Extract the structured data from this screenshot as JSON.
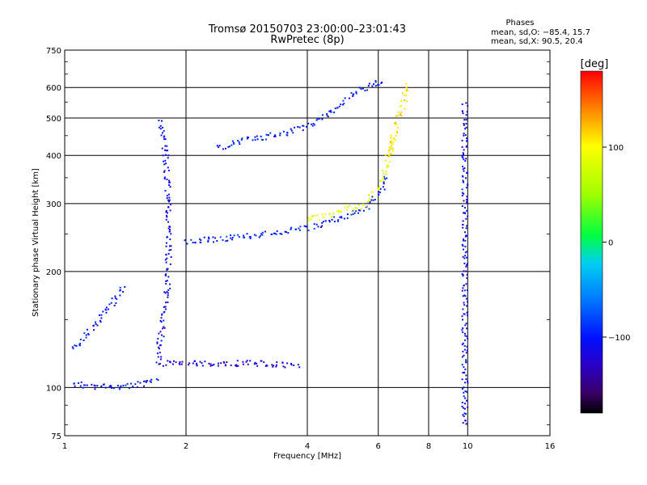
{
  "title_line1": "Tromsø 20150703 23:00:00–23:01:43",
  "title_line2": "RwPretec (8p)",
  "phase_box": {
    "heading": "Phases",
    "line1": "mean, sd,O: −85.4, 15.7",
    "line2": "mean, sd,X:  90.5, 20.4"
  },
  "colorbar": {
    "label": "[deg]",
    "ticks": [
      {
        "value": 100,
        "label": "100"
      },
      {
        "value": 0,
        "label": "0"
      },
      {
        "value": -100,
        "label": "−100"
      }
    ],
    "range": [
      -180,
      180
    ]
  },
  "chart_data": {
    "type": "scatter",
    "title": "Tromsø 20150703 23:00:00–23:01:43",
    "subtitle": "RwPretec (8p)",
    "xlabel": "Frequency [MHz]",
    "ylabel": "Stationary phase Virtual Height [km]",
    "x_scale": "log",
    "y_scale": "log",
    "xlim": [
      1,
      16
    ],
    "ylim": [
      75,
      750
    ],
    "x_ticks": [
      {
        "value": 1,
        "label": "1"
      },
      {
        "value": 2,
        "label": "2"
      },
      {
        "value": 4,
        "label": "4"
      },
      {
        "value": 6,
        "label": "6"
      },
      {
        "value": 8,
        "label": "8"
      },
      {
        "value": 10,
        "label": "10"
      },
      {
        "value": 16,
        "label": "16"
      }
    ],
    "y_ticks": [
      {
        "value": 75,
        "label": "75"
      },
      {
        "value": 100,
        "label": "100"
      },
      {
        "value": 200,
        "label": "200"
      },
      {
        "value": 300,
        "label": "300"
      },
      {
        "value": 400,
        "label": "400"
      },
      {
        "value": 500,
        "label": "500"
      },
      {
        "value": 600,
        "label": "600"
      },
      {
        "value": 750,
        "label": "750"
      }
    ],
    "grid": true,
    "color_variable": "phase [deg]",
    "colormap": "rainbow (black at -180, blue near -100, green 0, yellow 100, red 180)",
    "traces": [
      {
        "x": [
          1.05,
          1.1,
          1.2,
          1.3,
          1.4,
          1.5,
          1.6,
          1.7
        ],
        "y": [
          103,
          102,
          101,
          101,
          101,
          102,
          103,
          106
        ],
        "phase": -105
      },
      {
        "x": [
          1.05,
          1.1,
          1.2,
          1.3,
          1.4
        ],
        "y": [
          125,
          135,
          148,
          165,
          185
        ],
        "phase": -100
      },
      {
        "x": [
          1.7,
          1.72,
          1.75,
          1.78,
          1.8,
          1.8,
          1.8,
          1.78,
          1.75,
          1.72
        ],
        "y": [
          115,
          135,
          150,
          170,
          200,
          250,
          300,
          380,
          450,
          500
        ],
        "phase": -110
      },
      {
        "x": [
          1.75,
          2.0,
          2.5,
          3.0,
          3.5,
          3.8
        ],
        "y": [
          116,
          116,
          116,
          116,
          115,
          115
        ],
        "phase": -120
      },
      {
        "x": [
          2.0,
          2.5,
          3.0,
          3.5,
          4.0,
          4.5,
          5.0,
          5.5,
          6.0,
          6.3
        ],
        "y": [
          240,
          245,
          250,
          255,
          260,
          270,
          280,
          290,
          320,
          360
        ],
        "phase": -95
      },
      {
        "x": [
          4.0,
          4.5,
          5.0,
          5.5,
          6.0,
          6.3,
          6.5
        ],
        "y": [
          275,
          280,
          290,
          300,
          330,
          380,
          450
        ],
        "phase": 90
      },
      {
        "x": [
          2.4,
          2.8,
          3.2,
          3.6,
          4.0,
          4.5,
          5.0,
          5.5,
          6.0,
          6.2
        ],
        "y": [
          420,
          440,
          450,
          460,
          480,
          510,
          560,
          600,
          620,
          630
        ],
        "phase": -100
      },
      {
        "x": [
          6.3,
          6.5,
          6.7,
          6.9,
          7.0
        ],
        "y": [
          400,
          450,
          500,
          550,
          620
        ],
        "phase": 110
      },
      {
        "x": [
          9.8,
          9.8,
          9.8,
          9.8,
          9.8,
          9.8
        ],
        "y": [
          80,
          100,
          150,
          250,
          400,
          550
        ],
        "phase": -110
      }
    ]
  }
}
